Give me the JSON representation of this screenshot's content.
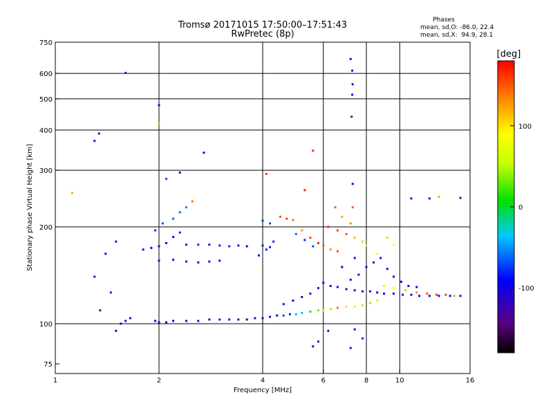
{
  "chart_data": {
    "type": "scatter",
    "title": "Tromsø 20171015 17:50:00–17:51:43",
    "subtitle": "RwPretec (8p)",
    "stats": {
      "heading": "Phases",
      "line_o": "mean, sd,O: -86.0, 22.4",
      "line_x": "mean, sd,X:  94.9, 28.1"
    },
    "xlabel": "Frequency [MHz]",
    "ylabel": "Stationary phase Virtual Height [km]",
    "x_scale": "log",
    "y_scale": "log",
    "xlim": [
      1,
      16
    ],
    "ylim": [
      70,
      750
    ],
    "x_ticks": [
      1,
      2,
      4,
      6,
      8,
      10,
      16
    ],
    "y_ticks": [
      75,
      100,
      200,
      300,
      400,
      500,
      600,
      750
    ],
    "grid_x": [
      2,
      4,
      6,
      8,
      10
    ],
    "grid_y": [
      100,
      200,
      300,
      400,
      500,
      600
    ],
    "grid": true,
    "colorbar": {
      "label": "[deg]",
      "range": [
        -180,
        180
      ],
      "ticks": [
        100,
        0,
        -100
      ],
      "colormap": "rainbow (black-purple-blue-cyan-green-yellow-orange-red)"
    },
    "series": [
      {
        "points": [
          [
            1.95,
            102,
            -100
          ],
          [
            2.0,
            101,
            -105
          ],
          [
            2.1,
            101,
            -110
          ],
          [
            2.2,
            102,
            -95
          ],
          [
            2.4,
            102,
            -110
          ],
          [
            2.6,
            102,
            -100
          ],
          [
            2.8,
            103,
            -110
          ],
          [
            3.0,
            103,
            -115
          ],
          [
            3.2,
            103,
            -120
          ],
          [
            3.4,
            103,
            -110
          ],
          [
            3.6,
            103,
            -115
          ],
          [
            3.8,
            104,
            -105
          ],
          [
            4.0,
            104,
            -110
          ],
          [
            4.2,
            105,
            -95
          ],
          [
            4.4,
            106,
            -100
          ],
          [
            4.6,
            106,
            -70
          ],
          [
            4.8,
            107,
            -80
          ],
          [
            5.0,
            107,
            -40
          ],
          [
            5.2,
            108,
            -30
          ],
          [
            5.5,
            109,
            -10
          ],
          [
            5.8,
            110,
            30
          ],
          [
            6.0,
            110,
            60
          ],
          [
            6.3,
            111,
            110
          ],
          [
            6.6,
            112,
            140
          ],
          [
            7.0,
            113,
            100
          ],
          [
            7.4,
            113,
            70
          ],
          [
            7.8,
            114,
            50
          ],
          [
            8.2,
            116,
            40
          ],
          [
            8.6,
            118,
            60
          ],
          [
            4.6,
            115,
            -90
          ],
          [
            4.9,
            118,
            -100
          ],
          [
            5.2,
            121,
            -110
          ],
          [
            5.5,
            124,
            -100
          ],
          [
            5.8,
            129,
            -110
          ],
          [
            6.0,
            134,
            -95
          ],
          [
            6.3,
            131,
            -105
          ],
          [
            6.6,
            130,
            -110
          ],
          [
            7.0,
            128,
            -100
          ],
          [
            7.4,
            127,
            -110
          ],
          [
            7.8,
            126,
            -105
          ],
          [
            8.2,
            126,
            -115
          ],
          [
            8.6,
            125,
            -100
          ],
          [
            9.0,
            124,
            -110
          ],
          [
            9.6,
            124,
            -105
          ],
          [
            10.2,
            123,
            -110
          ],
          [
            10.8,
            123,
            -100
          ],
          [
            11.4,
            122,
            -110
          ],
          [
            12.2,
            122,
            -105
          ],
          [
            13.0,
            122,
            -100
          ],
          [
            14.0,
            122,
            -110
          ],
          [
            15.0,
            122,
            -105
          ],
          [
            9.0,
            131,
            60
          ],
          [
            9.6,
            129,
            90
          ],
          [
            10.4,
            127,
            110
          ],
          [
            11.2,
            125,
            130
          ],
          [
            12.0,
            124,
            150
          ],
          [
            12.8,
            123,
            170
          ],
          [
            13.6,
            123,
            160
          ],
          [
            14.4,
            122,
            120
          ],
          [
            1.8,
            170,
            -95
          ],
          [
            1.9,
            172,
            -90
          ],
          [
            2.0,
            174,
            -100
          ],
          [
            2.1,
            178,
            -85
          ],
          [
            2.2,
            186,
            -90
          ],
          [
            2.3,
            192,
            -80
          ],
          [
            1.95,
            195,
            -75
          ],
          [
            2.05,
            205,
            -70
          ],
          [
            2.2,
            212,
            -65
          ],
          [
            2.3,
            222,
            -60
          ],
          [
            2.4,
            230,
            -55
          ],
          [
            2.0,
            157,
            -100
          ],
          [
            2.2,
            158,
            -95
          ],
          [
            2.4,
            156,
            -90
          ],
          [
            2.6,
            155,
            -100
          ],
          [
            2.8,
            156,
            -95
          ],
          [
            3.0,
            157,
            -90
          ],
          [
            2.4,
            176,
            -85
          ],
          [
            2.6,
            176,
            -80
          ],
          [
            2.8,
            176,
            -90
          ],
          [
            3.0,
            175,
            -85
          ],
          [
            3.2,
            174,
            -80
          ],
          [
            3.4,
            175,
            -85
          ],
          [
            3.6,
            174,
            -90
          ],
          [
            4.0,
            175,
            -85
          ],
          [
            4.2,
            173,
            -80
          ],
          [
            3.9,
            163,
            -90
          ],
          [
            4.1,
            170,
            -85
          ],
          [
            4.3,
            180,
            -80
          ],
          [
            4.0,
            209,
            -75
          ],
          [
            4.2,
            205,
            -70
          ],
          [
            4.5,
            215,
            150
          ],
          [
            4.7,
            212,
            160
          ],
          [
            4.9,
            210,
            140
          ],
          [
            5.2,
            195,
            130
          ],
          [
            5.5,
            185,
            160
          ],
          [
            5.8,
            178,
            170
          ],
          [
            6.0,
            175,
            150
          ],
          [
            6.3,
            170,
            130
          ],
          [
            6.6,
            168,
            150
          ],
          [
            5.0,
            190,
            -60
          ],
          [
            5.3,
            182,
            -80
          ],
          [
            5.6,
            174,
            -70
          ],
          [
            6.2,
            200,
            170
          ],
          [
            6.6,
            195,
            160
          ],
          [
            7.0,
            190,
            150
          ],
          [
            7.4,
            185,
            120
          ],
          [
            7.8,
            180,
            110
          ],
          [
            6.5,
            230,
            150
          ],
          [
            6.8,
            215,
            120
          ],
          [
            7.2,
            205,
            130
          ],
          [
            8.0,
            175,
            60
          ],
          [
            8.6,
            165,
            80
          ],
          [
            9.2,
            185,
            110
          ],
          [
            9.6,
            176,
            90
          ],
          [
            7.2,
            137,
            -110
          ],
          [
            7.6,
            142,
            -100
          ],
          [
            8.0,
            150,
            -110
          ],
          [
            8.4,
            155,
            -90
          ],
          [
            8.8,
            160,
            -100
          ],
          [
            9.2,
            148,
            -105
          ],
          [
            9.6,
            140,
            -110
          ],
          [
            10.1,
            135,
            -95
          ],
          [
            10.6,
            131,
            -105
          ],
          [
            11.2,
            130,
            -110
          ],
          [
            6.8,
            150,
            -90
          ],
          [
            7.4,
            160,
            -100
          ],
          [
            7.28,
            612,
            -110
          ],
          [
            7.3,
            555,
            -120
          ],
          [
            7.28,
            515,
            -100
          ],
          [
            7.25,
            440,
            -130
          ],
          [
            7.2,
            665,
            -100
          ],
          [
            7.3,
            272,
            -110
          ],
          [
            1.12,
            255,
            120
          ],
          [
            1.6,
            602,
            -120
          ],
          [
            1.34,
            390,
            -130
          ],
          [
            1.3,
            370,
            -110
          ],
          [
            2.0,
            478,
            -100
          ],
          [
            2.0,
            420,
            120
          ],
          [
            2.1,
            282,
            -70
          ],
          [
            2.3,
            295,
            -120
          ],
          [
            2.5,
            240,
            140
          ],
          [
            2.7,
            340,
            -90
          ],
          [
            4.1,
            292,
            160
          ],
          [
            5.3,
            260,
            170
          ],
          [
            5.6,
            345,
            170
          ],
          [
            7.3,
            230,
            150
          ],
          [
            10.8,
            245,
            -120
          ],
          [
            12.2,
            245,
            -110
          ],
          [
            13.0,
            248,
            120
          ],
          [
            15.0,
            246,
            -130
          ],
          [
            1.55,
            100,
            -100
          ],
          [
            1.6,
            102,
            -110
          ],
          [
            1.5,
            95,
            -120
          ],
          [
            1.65,
            104,
            -100
          ],
          [
            1.5,
            180,
            -110
          ],
          [
            1.4,
            165,
            -100
          ],
          [
            1.3,
            140,
            -90
          ],
          [
            1.45,
            125,
            -80
          ],
          [
            1.35,
            110,
            -130
          ],
          [
            5.6,
            85,
            -120
          ],
          [
            5.8,
            88,
            -110
          ],
          [
            6.2,
            95,
            -120
          ],
          [
            7.4,
            96,
            -110
          ],
          [
            7.8,
            90,
            -80
          ],
          [
            7.2,
            84,
            -100
          ]
        ]
      }
    ]
  }
}
